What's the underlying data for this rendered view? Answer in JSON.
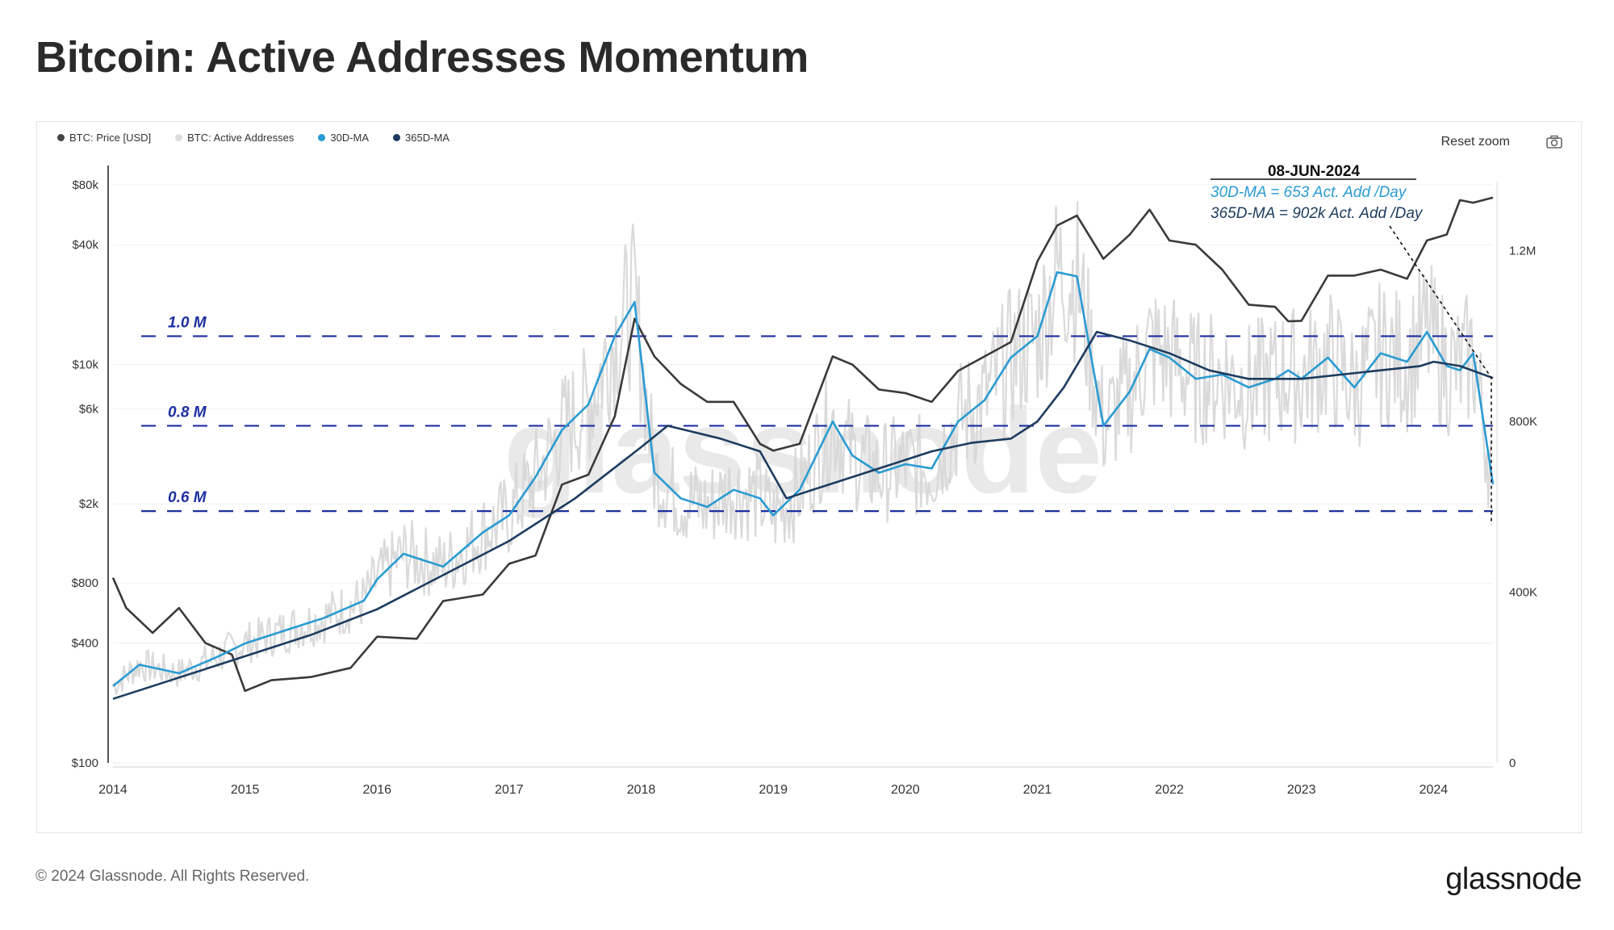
{
  "page": {
    "title": "Bitcoin: Active Addresses Momentum",
    "copyright": "© 2024 Glassnode. All Rights Reserved.",
    "brand": "glassnode",
    "watermark": "glassnode"
  },
  "toolbar": {
    "reset_zoom": "Reset zoom",
    "camera_icon": "camera-icon"
  },
  "legend": [
    {
      "label": "BTC: Price [USD]",
      "color": "#444444"
    },
    {
      "label": "BTC: Active Addresses",
      "color": "#dddddd"
    },
    {
      "label": "30D-MA",
      "color": "#2a9bd2"
    },
    {
      "label": "365D-MA",
      "color": "#1d3c5e"
    }
  ],
  "annotation": {
    "date": "08-JUN-2024",
    "line1": "30D-MA = 653 Act. Add /Day",
    "line2": "365D-MA = 902k  Act. Add /Day"
  },
  "chart_data": {
    "type": "line",
    "title": "Bitcoin: Active Addresses Momentum",
    "x_ticks": [
      "2014",
      "2015",
      "2016",
      "2017",
      "2018",
      "2019",
      "2020",
      "2021",
      "2022",
      "2023",
      "2024"
    ],
    "x_range": [
      2014.0,
      2024.45
    ],
    "y_left": {
      "label": "",
      "scale": "log",
      "range": [
        100,
        100000
      ],
      "ticks": [
        "$80k",
        "$40k",
        "$10k",
        "$6k",
        "$2k",
        "$800",
        "$400",
        "$100"
      ],
      "tick_values": [
        80000,
        40000,
        10000,
        6000,
        2000,
        800,
        400,
        100
      ]
    },
    "y_right": {
      "label": "",
      "scale": "linear",
      "range": [
        0,
        1400000
      ],
      "ticks": [
        "1.2M",
        "800K",
        "400K",
        "0"
      ],
      "tick_values": [
        1200000,
        800000,
        400000,
        0
      ]
    },
    "reference_lines": [
      {
        "label": "1.0 M",
        "value": 1000000,
        "color": "#1c2fa0"
      },
      {
        "label": "0.8 M",
        "value": 790000,
        "color": "#1c2fa0"
      },
      {
        "label": "0.6 M",
        "value": 590000,
        "color": "#1c2fa0"
      }
    ],
    "series": [
      {
        "name": "BTC: Price [USD]",
        "axis": "left",
        "color": "#3a3a3a",
        "x": [
          2014.0,
          2014.1,
          2014.3,
          2014.5,
          2014.7,
          2014.9,
          2015.0,
          2015.2,
          2015.5,
          2015.8,
          2016.0,
          2016.3,
          2016.5,
          2016.8,
          2017.0,
          2017.2,
          2017.4,
          2017.6,
          2017.8,
          2017.95,
          2018.1,
          2018.3,
          2018.5,
          2018.7,
          2018.9,
          2019.0,
          2019.2,
          2019.45,
          2019.6,
          2019.8,
          2020.0,
          2020.2,
          2020.4,
          2020.6,
          2020.8,
          2021.0,
          2021.15,
          2021.3,
          2021.5,
          2021.7,
          2021.85,
          2022.0,
          2022.2,
          2022.4,
          2022.6,
          2022.8,
          2022.9,
          2023.0,
          2023.2,
          2023.4,
          2023.6,
          2023.8,
          2023.95,
          2024.1,
          2024.2,
          2024.3,
          2024.45
        ],
        "values": [
          850,
          600,
          450,
          600,
          400,
          350,
          230,
          260,
          270,
          300,
          430,
          420,
          650,
          700,
          1000,
          1100,
          2500,
          2800,
          5500,
          17000,
          11000,
          8000,
          6500,
          6500,
          4000,
          3700,
          4000,
          11000,
          10000,
          7500,
          7200,
          6500,
          9300,
          11000,
          13000,
          33000,
          50000,
          56000,
          34000,
          45000,
          60000,
          42000,
          40000,
          30000,
          20000,
          19500,
          16500,
          16600,
          28000,
          28000,
          30000,
          27000,
          42000,
          45000,
          67000,
          65000,
          69000
        ]
      },
      {
        "name": "30D-MA",
        "axis": "right",
        "color": "#2a9bd2",
        "x": [
          2014.0,
          2014.2,
          2014.5,
          2014.8,
          2015.0,
          2015.3,
          2015.6,
          2015.9,
          2016.0,
          2016.2,
          2016.5,
          2016.8,
          2017.0,
          2017.2,
          2017.4,
          2017.6,
          2017.8,
          2017.95,
          2018.1,
          2018.3,
          2018.5,
          2018.7,
          2018.9,
          2019.0,
          2019.2,
          2019.45,
          2019.6,
          2019.8,
          2020.0,
          2020.2,
          2020.4,
          2020.6,
          2020.8,
          2021.0,
          2021.15,
          2021.3,
          2021.5,
          2021.7,
          2021.85,
          2022.0,
          2022.2,
          2022.4,
          2022.6,
          2022.8,
          2022.9,
          2023.0,
          2023.2,
          2023.4,
          2023.6,
          2023.8,
          2023.95,
          2024.1,
          2024.2,
          2024.3,
          2024.45
        ],
        "values": [
          180000,
          230000,
          210000,
          250000,
          280000,
          310000,
          340000,
          380000,
          430000,
          490000,
          460000,
          540000,
          580000,
          670000,
          780000,
          840000,
          1000000,
          1080000,
          680000,
          620000,
          600000,
          640000,
          620000,
          580000,
          640000,
          800000,
          720000,
          680000,
          700000,
          690000,
          800000,
          850000,
          950000,
          1000000,
          1150000,
          1140000,
          790000,
          870000,
          970000,
          950000,
          900000,
          910000,
          880000,
          900000,
          920000,
          900000,
          950000,
          880000,
          960000,
          940000,
          1010000,
          930000,
          920000,
          960000,
          653000
        ]
      },
      {
        "name": "365D-MA",
        "axis": "right",
        "color": "#1d3c5e",
        "x": [
          2014.0,
          2014.5,
          2015.0,
          2015.5,
          2016.0,
          2016.5,
          2017.0,
          2017.5,
          2018.0,
          2018.2,
          2018.6,
          2018.9,
          2019.1,
          2019.5,
          2019.9,
          2020.2,
          2020.5,
          2020.8,
          2021.0,
          2021.2,
          2021.45,
          2021.7,
          2022.0,
          2022.3,
          2022.6,
          2023.0,
          2023.3,
          2023.6,
          2023.9,
          2024.0,
          2024.2,
          2024.45
        ],
        "values": [
          150000,
          200000,
          250000,
          300000,
          360000,
          440000,
          520000,
          620000,
          740000,
          790000,
          760000,
          730000,
          620000,
          660000,
          700000,
          730000,
          750000,
          760000,
          800000,
          880000,
          1010000,
          990000,
          960000,
          920000,
          900000,
          900000,
          910000,
          920000,
          930000,
          940000,
          930000,
          902000
        ]
      }
    ]
  }
}
